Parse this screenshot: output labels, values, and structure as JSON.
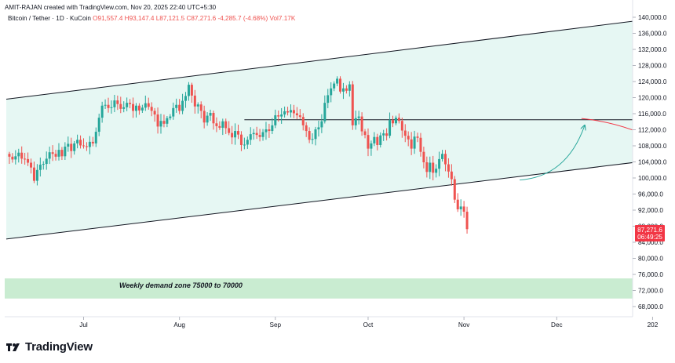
{
  "credit": "AMIT-RAJAN created with TradingView.com, Nov 20, 2025 22:40 UTC+5:30",
  "brand": "TradingView",
  "colors": {
    "up": "#26a69a",
    "down": "#ef5350",
    "channel_fill": "#e6f7f3",
    "demand_zone": "#c9ecd1",
    "price_badge": "#f23645",
    "arrow_up": "#26a69a",
    "arrow_down": "#f23645"
  },
  "chart_data": {
    "type": "candlestick",
    "symbol": "Bitcoin / Tether · 1D · KuCoin",
    "ohlc_header": {
      "open": "O91,557.4",
      "high": "H93,147.4",
      "low": "L87,121.5",
      "close": "C87,271.6",
      "change": "-4,285.7 (-4.68%)",
      "volume": "Vol7.17K"
    },
    "price_badge": {
      "value": "87,271.6",
      "countdown": "06:49:25"
    },
    "ylim": [
      64000,
      141000
    ],
    "y_ticks": [
      "68,000.0",
      "72,000.0",
      "76,000.0",
      "80,000.0",
      "84,000.0",
      "88,000.0",
      "92,000.0",
      "96,000.0",
      "100,000.0",
      "104,000.0",
      "108,000.0",
      "112,000.0",
      "116,000.0",
      "120,000.0",
      "124,000.0",
      "128,000.0",
      "132,000.0",
      "136,000.0",
      "140,000.0"
    ],
    "x_ticks": [
      {
        "label": "Jul",
        "date": "2025-07-01"
      },
      {
        "label": "Aug",
        "date": "2025-08-01"
      },
      {
        "label": "Sep",
        "date": "2025-09-01"
      },
      {
        "label": "Oct",
        "date": "2025-10-01"
      },
      {
        "label": "Nov",
        "date": "2025-11-01"
      },
      {
        "label": "Dec",
        "date": "2025-12-01"
      },
      {
        "label": "202",
        "date": "2026-01-01"
      }
    ],
    "annotation": "Weekly demand zone 75000 to 70000",
    "demand_zone": {
      "low": 70000,
      "high": 75000
    },
    "resistance": {
      "price": 114500,
      "start": "2025-08-22",
      "end": "2026-01-05"
    },
    "channel": {
      "upper": [
        {
          "date": "2025-06-06",
          "price": 119600
        },
        {
          "date": "2026-01-05",
          "price": 140000
        }
      ],
      "lower": [
        {
          "date": "2025-06-06",
          "price": 84800
        },
        {
          "date": "2026-01-05",
          "price": 104800
        }
      ]
    },
    "projection_up": [
      {
        "date": "2025-11-19",
        "price": 99500
      },
      {
        "date": "2025-12-10",
        "price": 113000
      }
    ],
    "projection_down": [
      {
        "date": "2025-12-09",
        "price": 114800
      },
      {
        "date": "2026-01-05",
        "price": 108200
      }
    ],
    "start_date": "2025-06-06",
    "closes": [
      106000,
      105300,
      104600,
      105400,
      106300,
      104800,
      104700,
      103800,
      102600,
      99300,
      102000,
      103300,
      103500,
      104800,
      106400,
      106000,
      105300,
      107000,
      105400,
      107800,
      108500,
      106700,
      108600,
      109500,
      108100,
      107900,
      107700,
      109000,
      108600,
      111500,
      115000,
      118000,
      118200,
      117400,
      117600,
      119300,
      118400,
      117200,
      117600,
      118700,
      118400,
      116700,
      118000,
      116800,
      117500,
      118600,
      117700,
      116700,
      115800,
      112800,
      114200,
      113500,
      114900,
      115300,
      117400,
      118200,
      116700,
      119200,
      120400,
      123200,
      120500,
      117800,
      118300,
      116700,
      113800,
      115500,
      116200,
      113600,
      112900,
      112500,
      114100,
      112400,
      111200,
      110100,
      111700,
      110800,
      108200,
      108300,
      109500,
      110900,
      111200,
      110700,
      110200,
      111400,
      112100,
      111700,
      113100,
      115600,
      115300,
      115800,
      116600,
      116300,
      116900,
      116100,
      115600,
      115200,
      113100,
      111700,
      109500,
      109700,
      112100,
      112600,
      114100,
      118700,
      120600,
      122300,
      123500,
      124700,
      121500,
      122300,
      121700,
      123300,
      113100,
      114900,
      115300,
      111600,
      110700,
      107300,
      108600,
      110200,
      108200,
      110600,
      111100,
      110500,
      114400,
      113600,
      115000,
      114200,
      111800,
      110500,
      109600,
      107300,
      110300,
      110000,
      106500,
      103900,
      101500,
      103800,
      101300,
      102300,
      104700,
      106000,
      103400,
      101600,
      99700,
      94600,
      92200,
      92900,
      91600,
      87270
    ]
  }
}
